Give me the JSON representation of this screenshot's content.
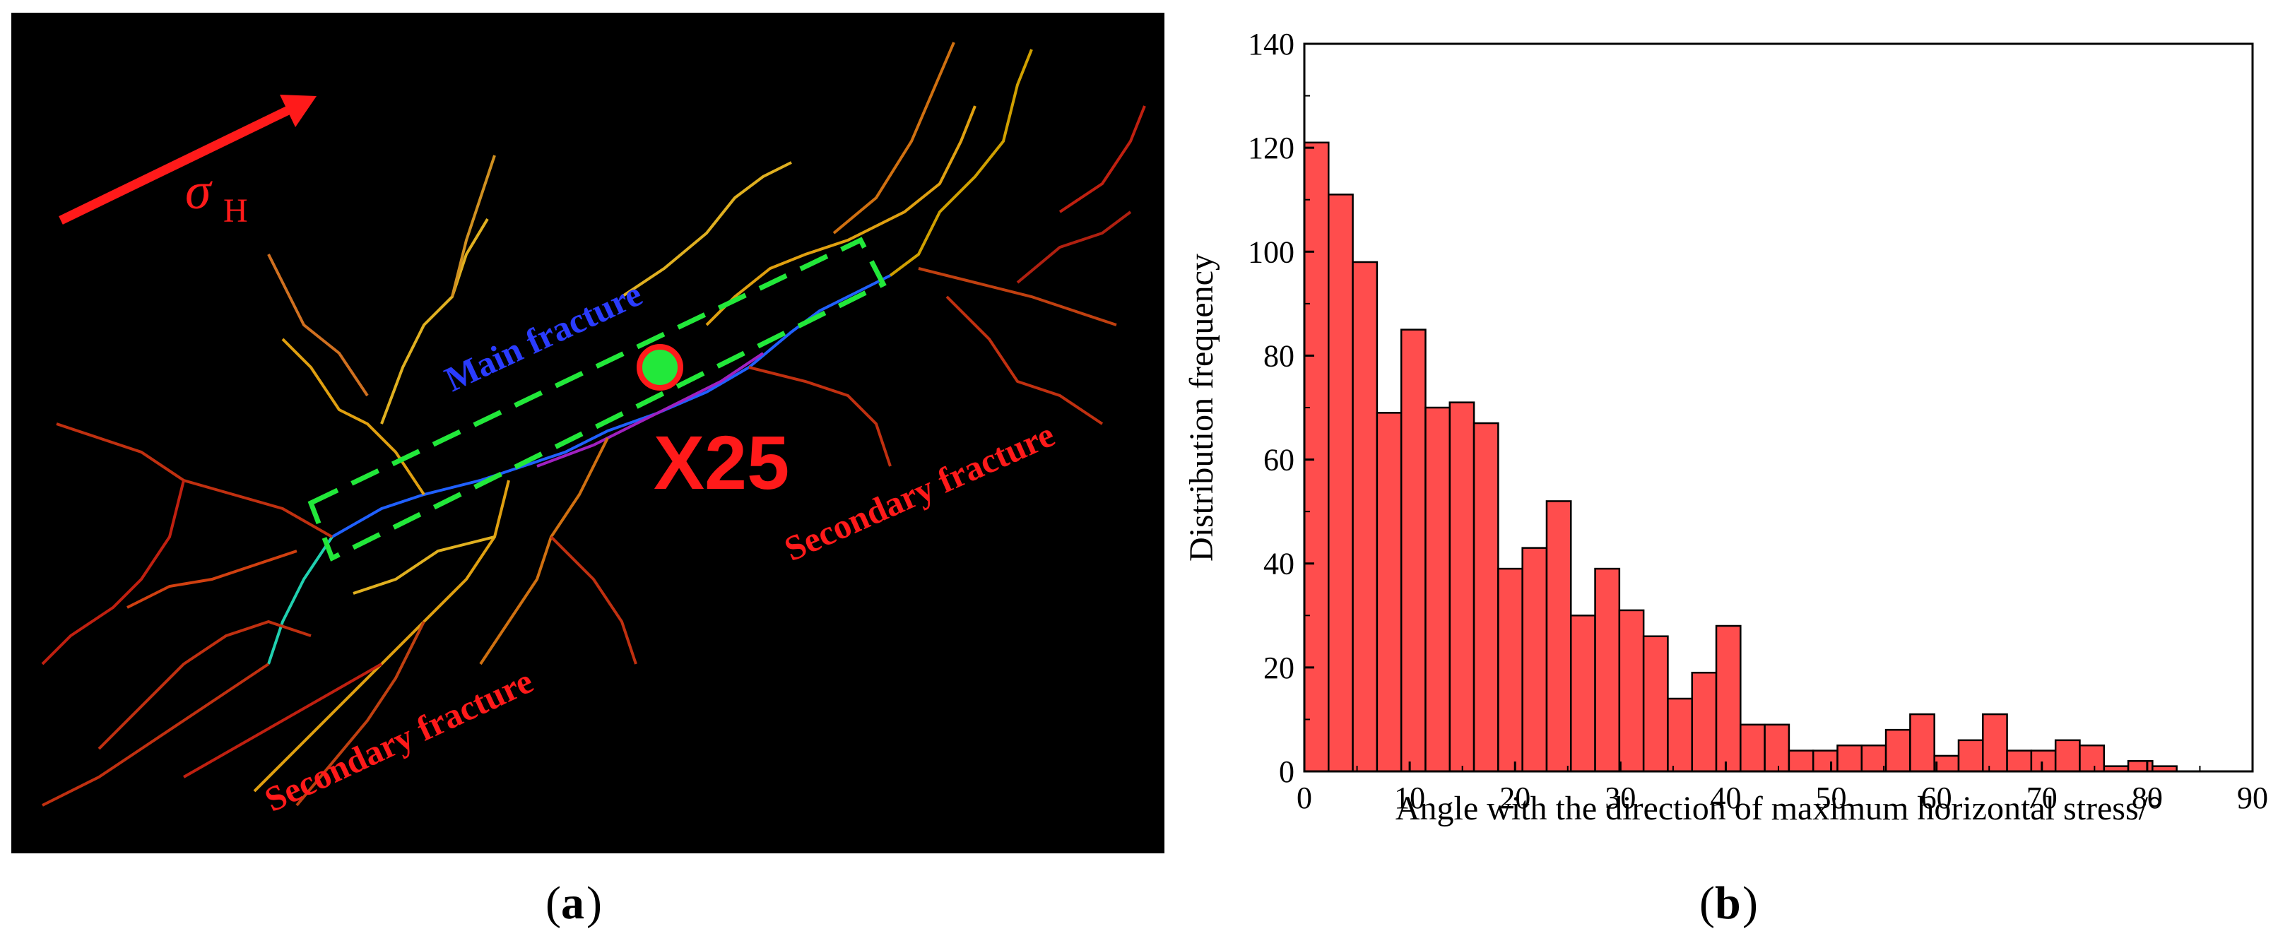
{
  "panel_a": {
    "caption": "a",
    "labels": {
      "sigma_symbol": "σ",
      "sigma_sub": "H",
      "main_fracture": "Main fracture",
      "well_id": "X25",
      "secondary_left": "Secondary fracture",
      "secondary_right": "Secondary fracture"
    },
    "colors": {
      "background": "#000000",
      "arrow": "#ff1a1a",
      "label_red": "#ff1a1a",
      "label_blue": "#2a3cff",
      "box": "#22e83a",
      "well_fill": "#22e83a",
      "well_ring": "#ff1a1a"
    }
  },
  "panel_b": {
    "caption": "b"
  },
  "chart_data": {
    "type": "bar",
    "title": "",
    "xlabel": "Angle with the direction of maximum horizontal stress/°",
    "ylabel": "Distribution frequency",
    "xlim": [
      0,
      90
    ],
    "ylim": [
      0,
      140
    ],
    "xticks": [
      0,
      10,
      20,
      30,
      40,
      50,
      60,
      70,
      80,
      90
    ],
    "yticks": [
      0,
      20,
      40,
      60,
      80,
      100,
      120,
      140
    ],
    "bin_width": 2.3,
    "bin_start": 0,
    "values": [
      121,
      111,
      98,
      69,
      85,
      70,
      71,
      67,
      39,
      43,
      52,
      30,
      39,
      31,
      26,
      14,
      19,
      28,
      9,
      9,
      4,
      4,
      5,
      5,
      8,
      11,
      3,
      6,
      11,
      4,
      4,
      6,
      5,
      1,
      2,
      1
    ],
    "bar_color": "#ff4d4d",
    "bar_edge": "#000000",
    "grid": false,
    "legend": "none"
  }
}
